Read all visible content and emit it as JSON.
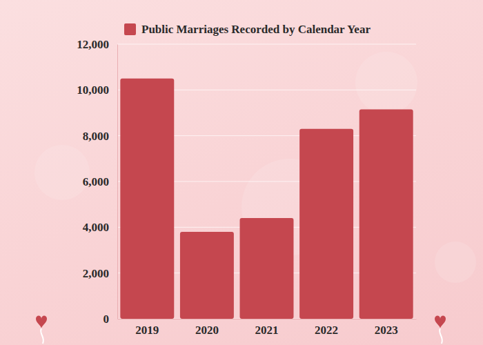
{
  "chart_data": {
    "type": "bar",
    "categories": [
      "2019",
      "2020",
      "2021",
      "2022",
      "2023"
    ],
    "series": [
      {
        "name": "Public Marriages Recorded by Calendar Year",
        "color": "#c5474f",
        "values": [
          10500,
          3800,
          4400,
          8300,
          9150
        ]
      }
    ],
    "ylim": [
      0,
      12000
    ],
    "yticks": [
      0,
      {
        "value": 2000,
        "label": "2,000"
      },
      {
        "value": 4000,
        "label": "4,000"
      },
      {
        "value": 6000,
        "label": "6,000"
      },
      {
        "value": 8000,
        "label": "8,000"
      },
      {
        "value": 10000,
        "label": "10,000"
      },
      {
        "value": 12000,
        "label": "12,000"
      }
    ],
    "grid": true,
    "legend": "top-left"
  }
}
